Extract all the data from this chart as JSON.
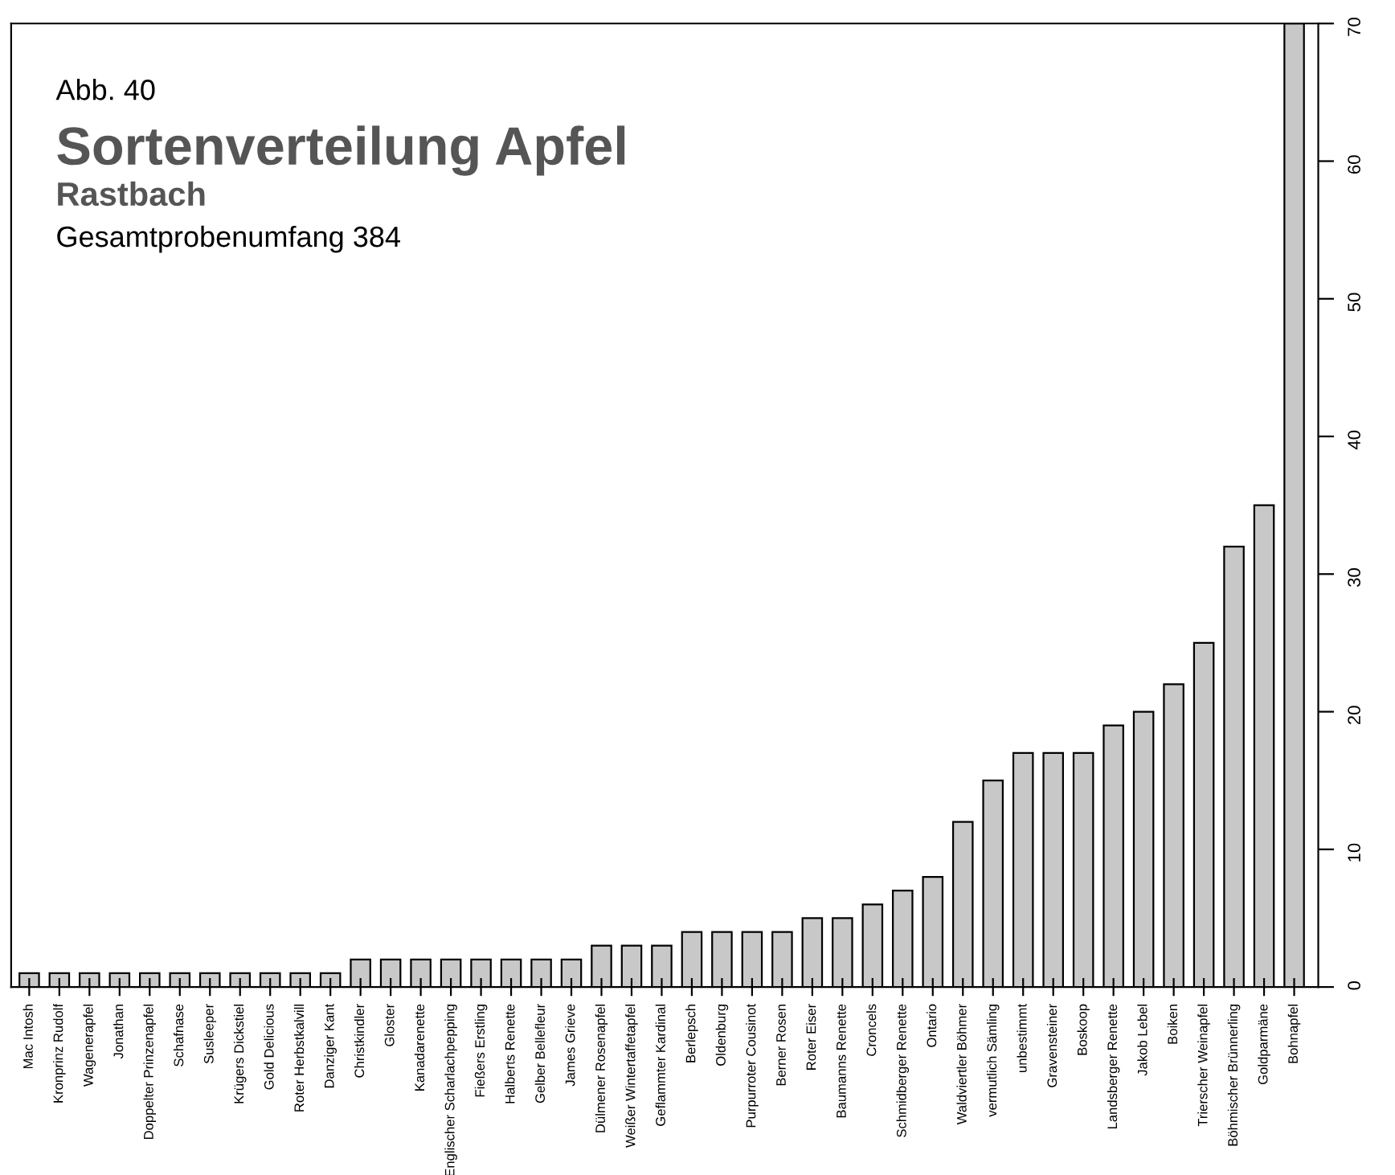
{
  "chart_data": {
    "type": "bar",
    "title": "Sortenverteilung Apfel",
    "subtitle": "Rastbach",
    "annotations": [
      "Abb. 40",
      "Gesamtprobenumfang 384"
    ],
    "categories": [
      "Mac Intosh",
      "Kronprinz Rudolf",
      "Wagenerapfel",
      "Jonathan",
      "Doppelter Prinzenapfel",
      "Schafnase",
      "Susleeper",
      "Krügers Dickstiel",
      "Gold Delicious",
      "Roter Herbstkalvill",
      "Danziger Kant",
      "Christkindler",
      "Gloster",
      "Kanadarenette",
      "Englischer Scharlachpepping",
      "Fießers Erstling",
      "Halberts Renette",
      "Gelber Bellefleur",
      "James Grieve",
      "Dülmener Rosenapfel",
      "Weißer Wintertaffetapfel",
      "Geflammter Kardinal",
      "Berlepsch",
      "Oldenburg",
      "Purpurroter Cousinot",
      "Berner Rosen",
      "Roter Eiser",
      "Baumanns Renette",
      "Croncels",
      "Schmidberger Renette",
      "Ontario",
      "Waldviertler Böhmer",
      "vermutlich Sämling",
      "unbestimmt",
      "Gravensteiner",
      "Boskoop",
      "Landsberger Renette",
      "Jakob Lebel",
      "Boiken",
      "Trierscher Weinapfel",
      "Böhmischer Brünnerling",
      "Goldparmäne",
      "Bohnapfel"
    ],
    "values": [
      1,
      1,
      1,
      1,
      1,
      1,
      1,
      1,
      1,
      1,
      1,
      2,
      2,
      2,
      2,
      2,
      2,
      2,
      2,
      3,
      3,
      3,
      4,
      4,
      4,
      4,
      5,
      5,
      6,
      7,
      8,
      12,
      15,
      17,
      17,
      17,
      19,
      20,
      22,
      25,
      32,
      35,
      70
    ],
    "color": "#c8c8c8",
    "ylim": [
      0,
      70
    ],
    "yticks": [
      0,
      10,
      20,
      30,
      40,
      50,
      60,
      70
    ],
    "grid": false
  }
}
